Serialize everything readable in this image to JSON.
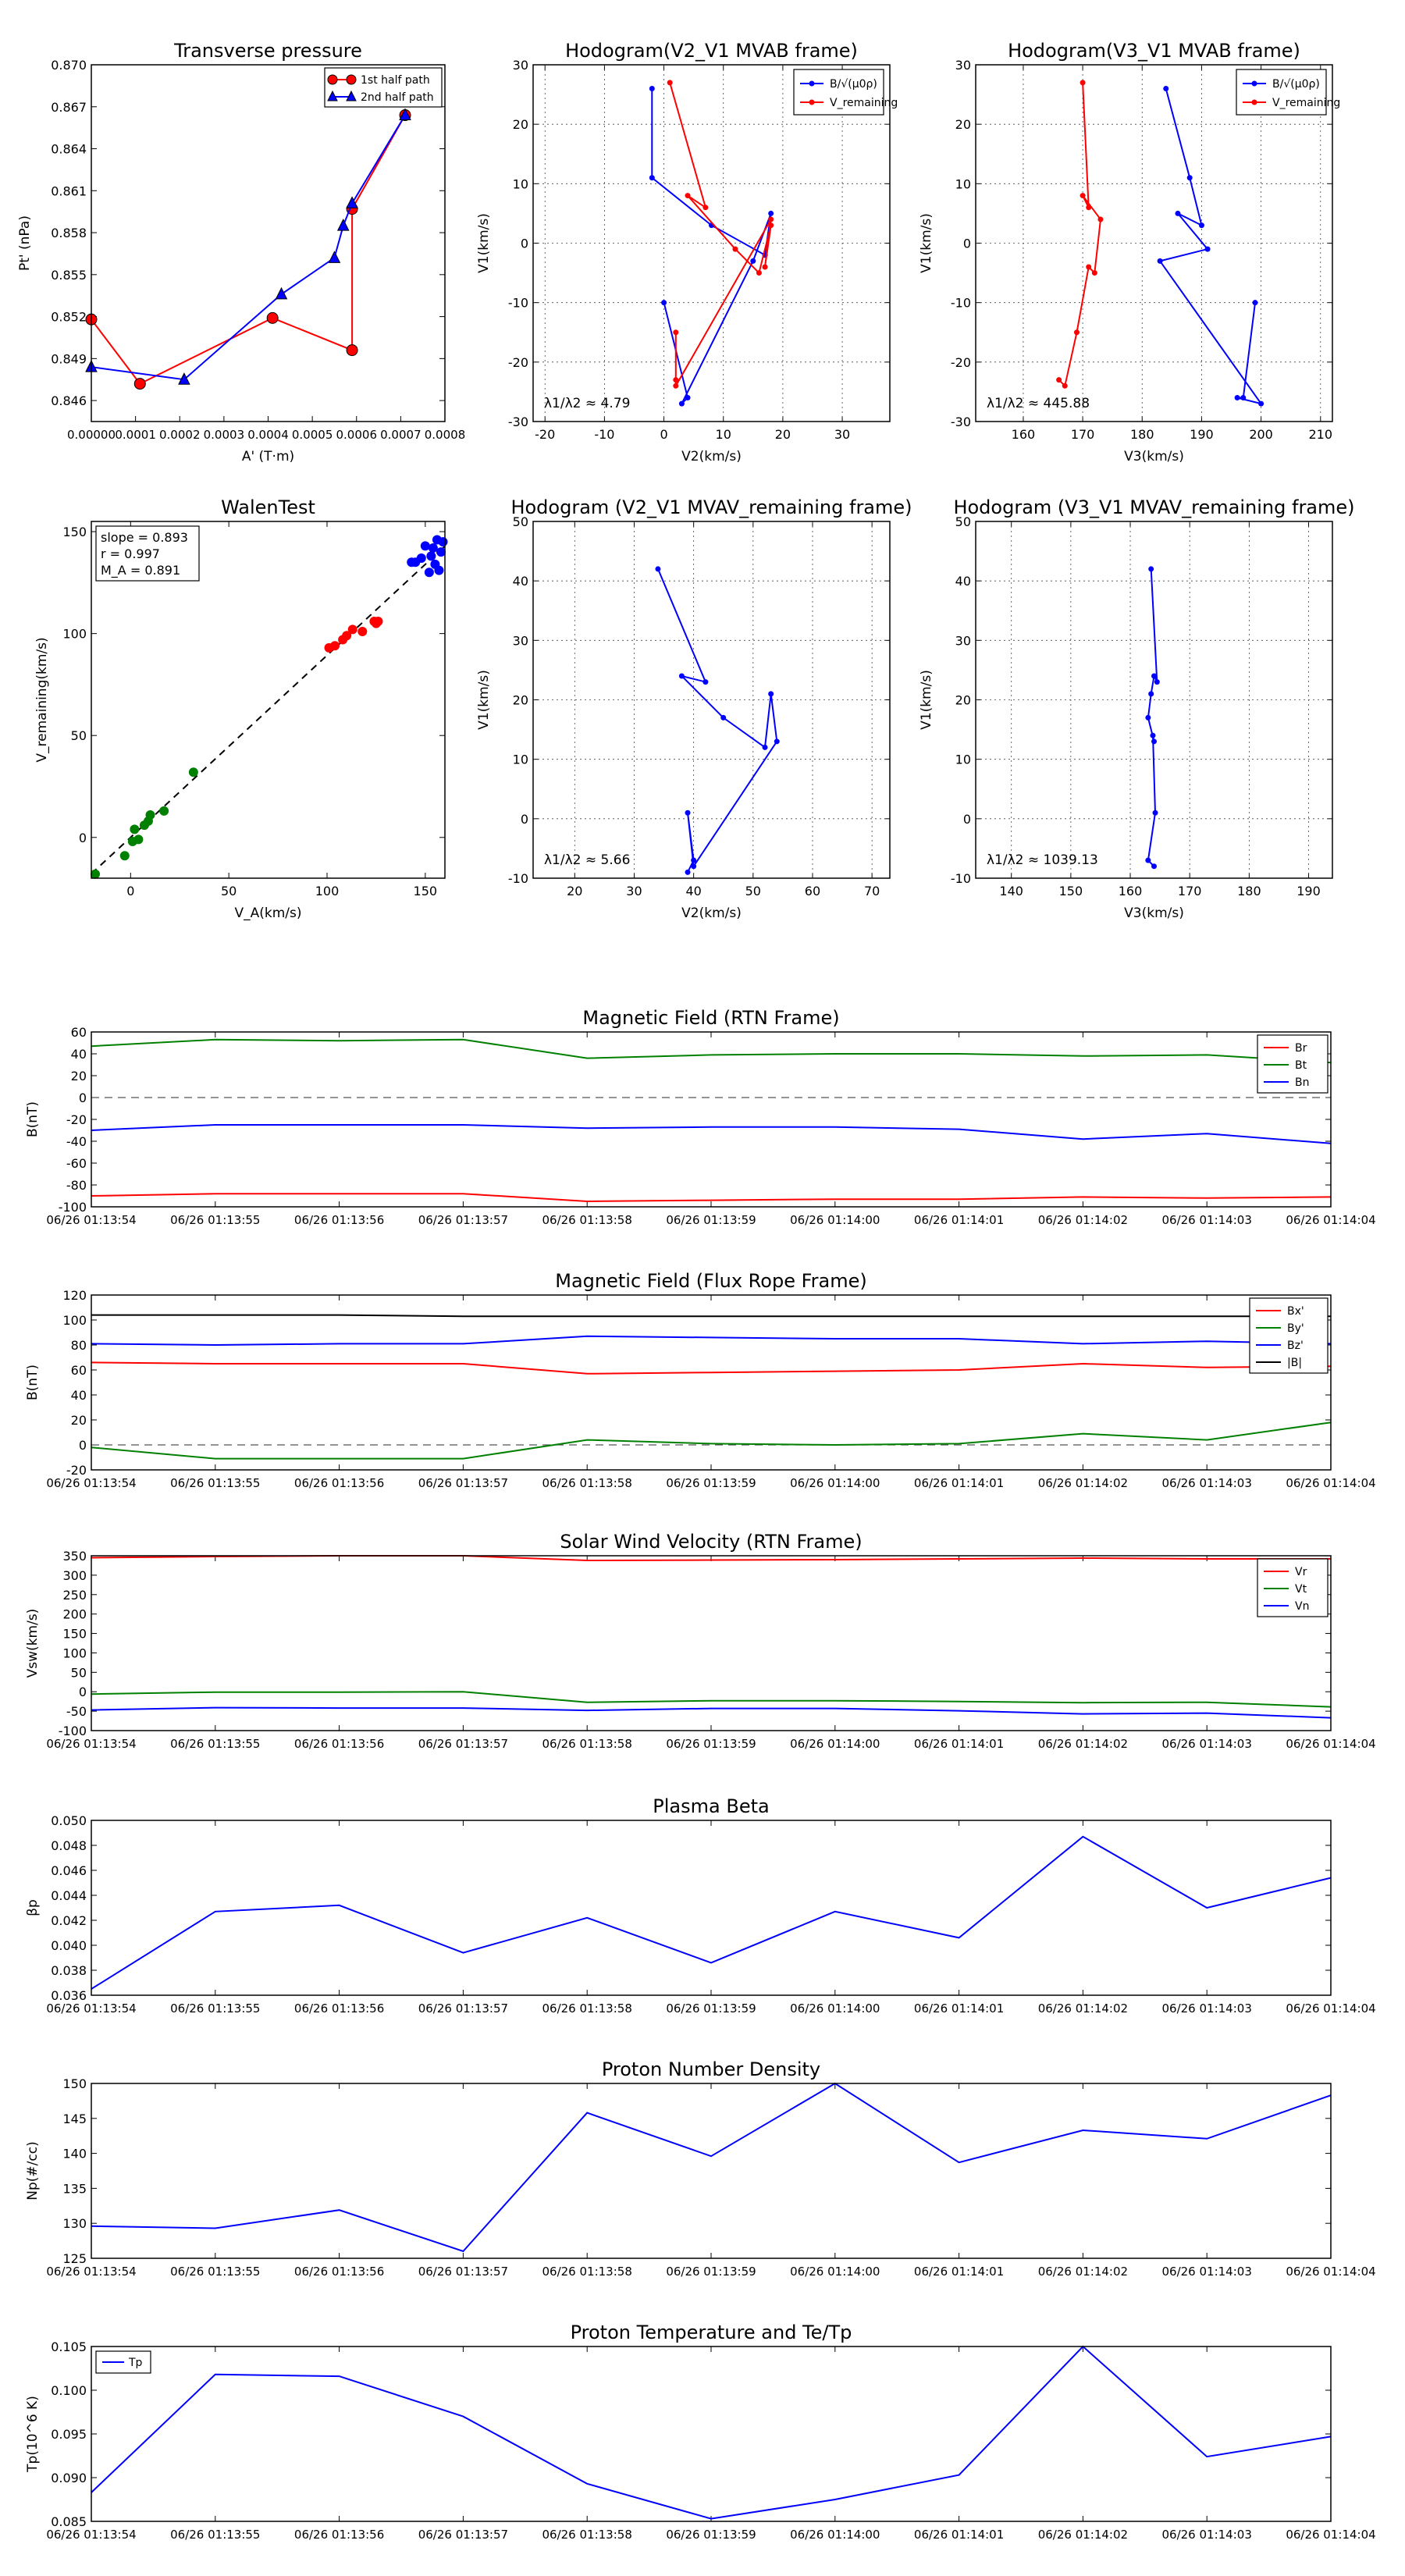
{
  "figure": {
    "time_labels": [
      "06/26 01:13:54",
      "06/26 01:13:55",
      "06/26 01:13:56",
      "06/26 01:13:57",
      "06/26 01:13:58",
      "06/26 01:13:59",
      "06/26 01:14:00",
      "06/26 01:14:01",
      "06/26 01:14:02",
      "06/26 01:14:03",
      "06/26 01:14:04"
    ]
  },
  "chart_data": [
    {
      "id": "transverse_pressure",
      "type": "scatter-line",
      "title": "Transverse pressure",
      "xlabel": "A' (T·m)",
      "ylabel": "Pt' (nPa)",
      "xlim": [
        0,
        0.0008
      ],
      "ylim": [
        0.8445,
        0.87
      ],
      "xticks": [
        "0.00000",
        "0.0001",
        "0.0002",
        "0.0003",
        "0.0004",
        "0.0005",
        "0.0006",
        "0.0007",
        "0.0008"
      ],
      "yticks": [
        "0.846",
        "0.849",
        "0.852",
        "0.855",
        "0.858",
        "0.861",
        "0.864",
        "0.867",
        "0.870"
      ],
      "legend": "top-right",
      "series": [
        {
          "name": "1st half path",
          "color": "#ff0000",
          "marker": "circle",
          "x": [
            0.0,
            0.00011,
            0.00041,
            0.00059,
            0.00059,
            0.00071
          ],
          "y": [
            0.8518,
            0.8472,
            0.8519,
            0.8496,
            0.8597,
            0.8664
          ]
        },
        {
          "name": "2nd half path",
          "color": "#0000ff",
          "marker": "triangle",
          "x": [
            0.0,
            0.00021,
            0.00043,
            0.00055,
            0.00057,
            0.00059,
            0.00071
          ],
          "y": [
            0.8484,
            0.8475,
            0.8536,
            0.8562,
            0.8585,
            0.8601,
            0.8664
          ]
        }
      ]
    },
    {
      "id": "hodo_v2_mvab",
      "type": "line",
      "title": "Hodogram(V2_V1 MVAB frame)",
      "xlabel": "V2(km/s)",
      "ylabel": "V1(km/s)",
      "xlim": [
        -22,
        38
      ],
      "ylim": [
        -30,
        30
      ],
      "xticks": [
        -20,
        -10,
        0,
        10,
        20,
        30
      ],
      "yticks": [
        -30,
        -20,
        -10,
        0,
        10,
        20,
        30
      ],
      "annotation": "λ1/λ2 ≈ 4.79",
      "legend": "top-right",
      "series": [
        {
          "name": "B/√(μ0ρ)",
          "color": "#0000ff",
          "x": [
            -2,
            -2,
            8,
            17,
            18,
            15,
            3,
            4,
            0
          ],
          "y": [
            26,
            11,
            3,
            -2,
            5,
            -3,
            -27,
            -26,
            -10
          ]
        },
        {
          "name": "V_remaining",
          "color": "#ff0000",
          "x": [
            1,
            7,
            4,
            12,
            16,
            18,
            17,
            18,
            2,
            2,
            2
          ],
          "y": [
            27,
            6,
            8,
            -1,
            -5,
            3,
            -4,
            4,
            -24,
            -23,
            -15
          ]
        }
      ]
    },
    {
      "id": "hodo_v3_mvab",
      "type": "line",
      "title": "Hodogram(V3_V1 MVAB frame)",
      "xlabel": "V3(km/s)",
      "ylabel": "V1(km/s)",
      "xlim": [
        152,
        212
      ],
      "ylim": [
        -30,
        30
      ],
      "xticks": [
        160,
        170,
        180,
        190,
        200,
        210
      ],
      "yticks": [
        -30,
        -20,
        -10,
        0,
        10,
        20,
        30
      ],
      "annotation": "λ1/λ2 ≈ 445.88",
      "legend": "top-right",
      "series": [
        {
          "name": "B/√(μ0ρ)",
          "color": "#0000ff",
          "x": [
            184,
            188,
            190,
            186,
            191,
            183,
            200,
            196,
            197,
            199
          ],
          "y": [
            26,
            11,
            3,
            5,
            -1,
            -3,
            -27,
            -26,
            -26,
            -10
          ]
        },
        {
          "name": "V_remaining",
          "color": "#ff0000",
          "x": [
            170,
            171,
            170,
            173,
            172,
            171,
            169,
            167,
            166
          ],
          "y": [
            27,
            6,
            8,
            4,
            -5,
            -4,
            -15,
            -24,
            -23
          ]
        }
      ]
    },
    {
      "id": "walen_test",
      "type": "scatter",
      "title": "WalenTest",
      "xlabel": "V_A(km/s)",
      "ylabel": "V_remaining(km/s)",
      "xlim": [
        -20,
        160
      ],
      "ylim": [
        -20,
        155
      ],
      "xticks": [
        0,
        50,
        100,
        150
      ],
      "yticks": [
        0,
        50,
        100,
        150
      ],
      "annotations": [
        "slope = 0.893",
        "r = 0.997",
        "M_A = 0.891"
      ],
      "fit": {
        "slope": 0.893,
        "x": [
          -20,
          160
        ]
      },
      "series": [
        {
          "name": "green",
          "color": "#008000",
          "x": [
            -18,
            -3,
            1,
            2,
            4,
            7,
            9,
            10,
            17,
            32
          ],
          "y": [
            -18,
            -9,
            -2,
            4,
            -1,
            6,
            8,
            11,
            13,
            32
          ]
        },
        {
          "name": "red",
          "color": "#ff0000",
          "x": [
            101,
            104,
            108,
            110,
            113,
            118,
            124,
            125,
            126
          ],
          "y": [
            93,
            94,
            97,
            99,
            102,
            101,
            106,
            105,
            106
          ]
        },
        {
          "name": "blue",
          "color": "#0000ff",
          "x": [
            143,
            145,
            148,
            150,
            152,
            153,
            154,
            155,
            156,
            157,
            158,
            159
          ],
          "y": [
            135,
            135,
            137,
            143,
            130,
            138,
            142,
            134,
            146,
            131,
            140,
            145
          ]
        }
      ]
    },
    {
      "id": "hodo_v2_mvav",
      "type": "line",
      "title": "Hodogram (V2_V1 MVAV_remaining frame)",
      "xlabel": "V2(km/s)",
      "ylabel": "V1(km/s)",
      "xlim": [
        13,
        73
      ],
      "ylim": [
        -10,
        50
      ],
      "xticks": [
        20,
        30,
        40,
        50,
        60,
        70
      ],
      "yticks": [
        -10,
        0,
        10,
        20,
        30,
        40,
        50
      ],
      "annotation": "λ1/λ2 ≈ 5.66",
      "series": [
        {
          "name": "path",
          "color": "#0000ff",
          "x": [
            34,
            42,
            38,
            45,
            52,
            53,
            54,
            40,
            39,
            40,
            39
          ],
          "y": [
            42,
            23,
            24,
            17,
            12,
            21,
            13,
            -8,
            1,
            -7,
            -9
          ]
        }
      ]
    },
    {
      "id": "hodo_v3_mvav",
      "type": "line",
      "title": "Hodogram (V3_V1 MVAV_remaining frame)",
      "xlabel": "V3(km/s)",
      "ylabel": "V1(km/s)",
      "xlim": [
        134,
        194
      ],
      "ylim": [
        -10,
        50
      ],
      "xticks": [
        140,
        150,
        160,
        170,
        180,
        190
      ],
      "yticks": [
        -10,
        0,
        10,
        20,
        30,
        40,
        50
      ],
      "annotation": "λ1/λ2 ≈ 1039.13",
      "series": [
        {
          "name": "path",
          "color": "#0000ff",
          "x": [
            163.5,
            164.5,
            164,
            163.5,
            163,
            164,
            163.8,
            164.2,
            163,
            164
          ],
          "y": [
            42,
            23,
            24,
            21,
            17,
            13,
            14,
            1,
            -7,
            -8
          ]
        }
      ]
    },
    {
      "id": "mag_rtn",
      "type": "line",
      "title": "Magnetic Field (RTN Frame)",
      "ylabel": "B(nT)",
      "ylim": [
        -100,
        60
      ],
      "yticks": [
        -100,
        -80,
        -60,
        -40,
        -20,
        0,
        20,
        40,
        60
      ],
      "zero_line": true,
      "legend": "top-right",
      "series": [
        {
          "name": "Br",
          "color": "#ff0000",
          "values": [
            -90,
            -88,
            -88,
            -88,
            -95,
            -94,
            -93,
            -93,
            -91,
            -92,
            -91
          ]
        },
        {
          "name": "Bt",
          "color": "#008000",
          "values": [
            47,
            53,
            52,
            53,
            36,
            39,
            40,
            40,
            38,
            39,
            32
          ]
        },
        {
          "name": "Bn",
          "color": "#0000ff",
          "values": [
            -30,
            -25,
            -25,
            -25,
            -28,
            -27,
            -27,
            -29,
            -38,
            -33,
            -42
          ]
        }
      ]
    },
    {
      "id": "mag_fr",
      "type": "line",
      "title": "Magnetic Field (Flux Rope Frame)",
      "ylabel": "B(nT)",
      "ylim": [
        -20,
        120
      ],
      "yticks": [
        -20,
        0,
        20,
        40,
        60,
        80,
        100,
        120
      ],
      "zero_line": true,
      "legend": "top-right",
      "series": [
        {
          "name": "Bx'",
          "color": "#ff0000",
          "values": [
            66,
            65,
            65,
            65,
            57,
            58,
            59,
            60,
            65,
            62,
            63
          ]
        },
        {
          "name": "By'",
          "color": "#008000",
          "values": [
            -2,
            -11,
            -11,
            -11,
            4,
            1,
            0,
            1,
            9,
            4,
            18
          ]
        },
        {
          "name": "Bz'",
          "color": "#0000ff",
          "values": [
            81,
            80,
            81,
            81,
            87,
            86,
            85,
            85,
            81,
            83,
            81
          ]
        },
        {
          "name": "|B|",
          "color": "#000000",
          "values": [
            104,
            104,
            104,
            103,
            103,
            103,
            103,
            103,
            103,
            103,
            103
          ]
        }
      ]
    },
    {
      "id": "sw_velocity",
      "type": "line",
      "title": "Solar Wind Velocity (RTN Frame)",
      "ylabel": "Vsw(km/s)",
      "ylim": [
        -100,
        350
      ],
      "yticks": [
        -100,
        -50,
        0,
        50,
        100,
        150,
        200,
        250,
        300,
        350
      ],
      "legend": "top-right",
      "series": [
        {
          "name": "Vr",
          "color": "#ff0000",
          "values": [
            345,
            348,
            350,
            350,
            338,
            339,
            340,
            342,
            344,
            342,
            342
          ]
        },
        {
          "name": "Vt",
          "color": "#008000",
          "values": [
            -6,
            -1,
            -1,
            0,
            -27,
            -23,
            -23,
            -25,
            -28,
            -27,
            -39
          ]
        },
        {
          "name": "Vn",
          "color": "#0000ff",
          "values": [
            -47,
            -41,
            -42,
            -42,
            -48,
            -43,
            -43,
            -49,
            -57,
            -55,
            -67
          ]
        }
      ]
    },
    {
      "id": "plasma_beta",
      "type": "line",
      "title": "Plasma Beta",
      "ylabel": "βp",
      "ylim": [
        0.036,
        0.05
      ],
      "yticks": [
        0.036,
        0.038,
        0.04,
        0.042,
        0.044,
        0.046,
        0.048,
        0.05
      ],
      "ydec": 3,
      "series": [
        {
          "name": "beta",
          "color": "#0000ff",
          "values": [
            0.0365,
            0.0427,
            0.0432,
            0.0394,
            0.0422,
            0.0386,
            0.0427,
            0.0406,
            0.0487,
            0.043,
            0.0454
          ]
        }
      ]
    },
    {
      "id": "proton_density",
      "type": "line",
      "title": "Proton Number Density",
      "ylabel": "Np(#/cc)",
      "ylim": [
        125,
        150
      ],
      "yticks": [
        125,
        130,
        135,
        140,
        145,
        150
      ],
      "series": [
        {
          "name": "Np",
          "color": "#0000ff",
          "values": [
            129.6,
            129.3,
            131.9,
            126.0,
            145.8,
            139.6,
            150.0,
            138.7,
            143.3,
            142.1,
            148.3
          ]
        }
      ]
    },
    {
      "id": "proton_temperature",
      "type": "line",
      "title": "Proton Temperature and Te/Tp",
      "ylabel": "Tp(10^6 K)",
      "ylim": [
        0.085,
        0.105
      ],
      "yticks": [
        0.085,
        0.09,
        0.095,
        0.1,
        0.105
      ],
      "ydec": 3,
      "legend": "top-left",
      "series": [
        {
          "name": "Tp",
          "color": "#0000ff",
          "values": [
            0.0883,
            0.1018,
            0.1016,
            0.097,
            0.0893,
            0.0853,
            0.0875,
            0.0903,
            0.105,
            0.0924,
            0.0947
          ]
        }
      ]
    }
  ]
}
